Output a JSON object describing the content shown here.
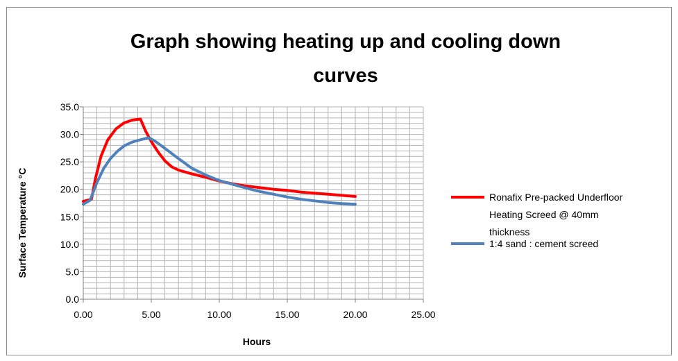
{
  "chart_data": {
    "type": "line",
    "title_lines": [
      "Graph showing heating up and cooling down",
      "curves"
    ],
    "xlabel": "Hours",
    "ylabel": "Surface Temperature °C",
    "xlim": [
      0,
      25
    ],
    "ylim": [
      0,
      35
    ],
    "x_ticks": [
      "0.00",
      "5.00",
      "10.00",
      "15.00",
      "20.00",
      "25.00"
    ],
    "y_ticks": [
      "0.0",
      "5.0",
      "10.0",
      "15.0",
      "20.0",
      "25.0",
      "30.0",
      "35.0"
    ],
    "grid": true,
    "legend_position": "right",
    "series": [
      {
        "name_lines": [
          "Ronafix Pre-packed Underfloor",
          "Heating Screed @ 40mm",
          "thickness"
        ],
        "color": "#ff0000",
        "points": [
          [
            0,
            17.8
          ],
          [
            0.6,
            18.2
          ],
          [
            0.9,
            22
          ],
          [
            1.3,
            26
          ],
          [
            1.8,
            29
          ],
          [
            2.4,
            31
          ],
          [
            3,
            32.1
          ],
          [
            3.6,
            32.6
          ],
          [
            4.2,
            32.8
          ],
          [
            4.6,
            30.5
          ],
          [
            5,
            28.7
          ],
          [
            5.5,
            26.8
          ],
          [
            6,
            25.2
          ],
          [
            6.5,
            24.1
          ],
          [
            7,
            23.5
          ],
          [
            8,
            22.8
          ],
          [
            9,
            22.2
          ],
          [
            10,
            21.5
          ],
          [
            11,
            21
          ],
          [
            12,
            20.6
          ],
          [
            13,
            20.3
          ],
          [
            14,
            20
          ],
          [
            15,
            19.8
          ],
          [
            16,
            19.5
          ],
          [
            17,
            19.3
          ],
          [
            18,
            19.1
          ],
          [
            19,
            18.9
          ],
          [
            20,
            18.7
          ]
        ]
      },
      {
        "name_lines": [
          "1:4 sand : cement screed"
        ],
        "color": "#4f81bd",
        "points": [
          [
            0,
            17.3
          ],
          [
            0.5,
            18
          ],
          [
            1,
            21.2
          ],
          [
            1.5,
            23.8
          ],
          [
            2,
            25.6
          ],
          [
            2.5,
            26.9
          ],
          [
            3,
            27.9
          ],
          [
            3.5,
            28.5
          ],
          [
            4,
            28.9
          ],
          [
            4.5,
            29.2
          ],
          [
            4.8,
            29.4
          ],
          [
            5.2,
            28.9
          ],
          [
            5.7,
            28
          ],
          [
            6.3,
            26.9
          ],
          [
            7,
            25.6
          ],
          [
            8,
            23.8
          ],
          [
            9,
            22.6
          ],
          [
            10,
            21.6
          ],
          [
            11,
            20.9
          ],
          [
            12,
            20.2
          ],
          [
            13,
            19.6
          ],
          [
            14,
            19.1
          ],
          [
            15,
            18.6
          ],
          [
            16,
            18.2
          ],
          [
            17,
            17.9
          ],
          [
            18,
            17.6
          ],
          [
            19,
            17.4
          ],
          [
            20,
            17.3
          ]
        ]
      }
    ]
  }
}
